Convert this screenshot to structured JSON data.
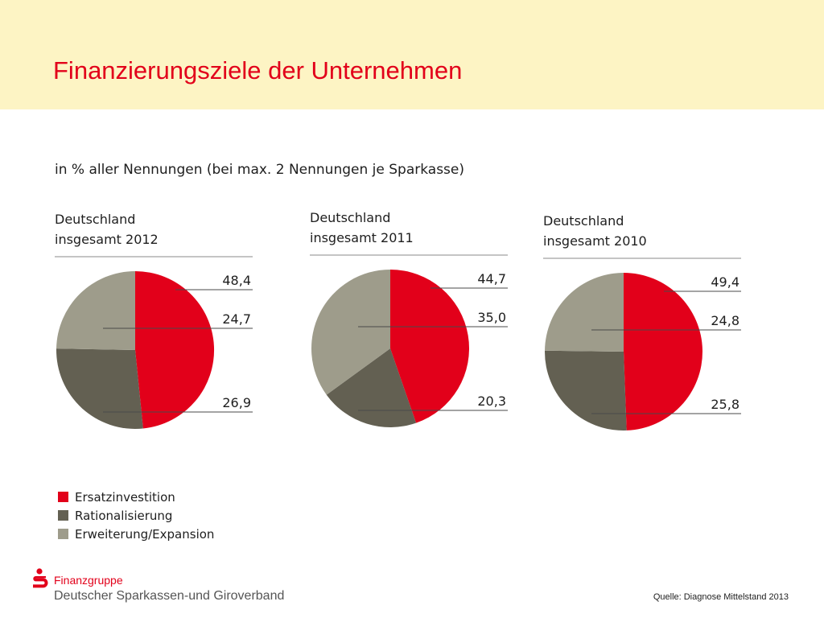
{
  "slide": {
    "title": "Finanzierungsziele der Unternehmen",
    "subtitle": "in % aller Nennungen (bei max. 2 Nennungen je Sparkasse)",
    "source": "Quelle: Diagnose Mittelstand 2013"
  },
  "branding": {
    "brand_name": "Finanzgruppe",
    "organization": "Deutscher Sparkassen-und Giroverband",
    "logo_icon": "sparkassen-s-logo-icon",
    "brand_color": "#e2001a"
  },
  "colors": {
    "header_background": "#fdf4c4",
    "title": "#e2001a"
  },
  "chart_data": [
    {
      "type": "pie",
      "title": "Deutschland\ninsgesamt 2012",
      "categories": [
        "Ersatzinvestition",
        "Rationalisierung",
        "Erweiterung/Expansion"
      ],
      "values": [
        48.4,
        26.9,
        24.7
      ],
      "labels": [
        "48,4",
        "26,9",
        "24,7"
      ],
      "label_order": [
        "48,4",
        "24,7",
        "26,9"
      ]
    },
    {
      "type": "pie",
      "title": "Deutschland\ninsgesamt 2011",
      "categories": [
        "Ersatzinvestition",
        "Rationalisierung",
        "Erweiterung/Expansion"
      ],
      "values": [
        44.7,
        20.3,
        35.0
      ],
      "labels": [
        "44,7",
        "20,3",
        "35,0"
      ],
      "label_order": [
        "44,7",
        "35,0",
        "20,3"
      ]
    },
    {
      "type": "pie",
      "title": "Deutschland\ninsgesamt 2010",
      "categories": [
        "Ersatzinvestition",
        "Rationalisierung",
        "Erweiterung/Expansion"
      ],
      "values": [
        49.4,
        25.8,
        24.8
      ],
      "labels": [
        "49,4",
        "25,8",
        "24,8"
      ],
      "label_order": [
        "49,4",
        "24,8",
        "25,8"
      ]
    }
  ],
  "legend": {
    "items": [
      {
        "label": "Ersatzinvestition",
        "color": "#e2001a"
      },
      {
        "label": "Rationalisierung",
        "color": "#636052"
      },
      {
        "label": "Erweiterung/Expansion",
        "color": "#9e9c8b"
      }
    ]
  }
}
